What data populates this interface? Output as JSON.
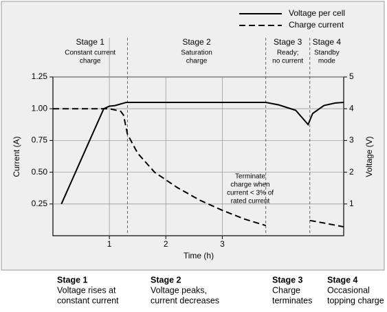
{
  "chart_data": {
    "type": "line",
    "x_label": "Time (h)",
    "y_label": "Current (A)",
    "y2_label": "Voltage (V)",
    "xlim": [
      0,
      5.15
    ],
    "xticks": [
      1,
      2,
      3
    ],
    "ylim": [
      0,
      1.25
    ],
    "yticks": [
      0.25,
      {
        "value": 0.5,
        "label": "0.50"
      },
      0.75,
      {
        "value": 1,
        "label": "1.00"
      },
      1.25
    ],
    "y2lim": [
      0,
      5
    ],
    "y2ticks": [
      1,
      2,
      3,
      4,
      5
    ],
    "grid": true,
    "legend": "top-right",
    "series": [
      {
        "name": "Voltage per cell",
        "color": "#000000",
        "dash": "solid",
        "axis": "y2",
        "x": [
          0.15,
          0.9,
          1.0,
          1.1,
          1.3,
          3.77,
          4.0,
          4.3,
          4.52,
          4.6,
          4.8,
          5.0,
          5.15
        ],
        "values": [
          1.0,
          4.0,
          4.08,
          4.1,
          4.2,
          4.2,
          4.12,
          3.95,
          3.5,
          3.85,
          4.1,
          4.18,
          4.2
        ]
      },
      {
        "name": "Charge current",
        "color": "#000000",
        "dash": "dashed",
        "x": [
          0,
          1.0,
          1.2,
          1.25,
          1.32,
          1.5,
          1.8,
          2.2,
          2.6,
          3.0,
          3.4,
          3.77,
          4.1,
          4.55,
          4.8,
          5.15
        ],
        "values": [
          1.0,
          1.0,
          0.98,
          0.95,
          0.8,
          0.65,
          0.5,
          0.38,
          0.28,
          0.2,
          0.13,
          0.08,
          null,
          0.12,
          0.1,
          0.07
        ]
      }
    ],
    "stage_boundaries": [
      1.32,
      3.77,
      4.55
    ],
    "stages": [
      {
        "title": "Stage 1",
        "lines": [
          "Constant current",
          "charge"
        ]
      },
      {
        "title": "Stage 2",
        "lines": [
          "Saturation",
          "charge"
        ]
      },
      {
        "title": "Stage 3",
        "lines": [
          "Ready;",
          "no current"
        ]
      },
      {
        "title": "Stage 4",
        "lines": [
          "Standby",
          "mode"
        ]
      }
    ],
    "annotation": [
      "Terminate",
      "charge when",
      "current < 3% of",
      "rated current"
    ],
    "captions": [
      {
        "title": "Stage 1",
        "lines": [
          "Voltage rises at",
          "constant current"
        ]
      },
      {
        "title": "Stage 2",
        "lines": [
          "Voltage peaks,",
          "current decreases"
        ]
      },
      {
        "title": "Stage 3",
        "lines": [
          "Charge",
          "terminates"
        ]
      },
      {
        "title": "Stage 4",
        "lines": [
          "Occasional",
          "topping charge"
        ]
      }
    ]
  }
}
